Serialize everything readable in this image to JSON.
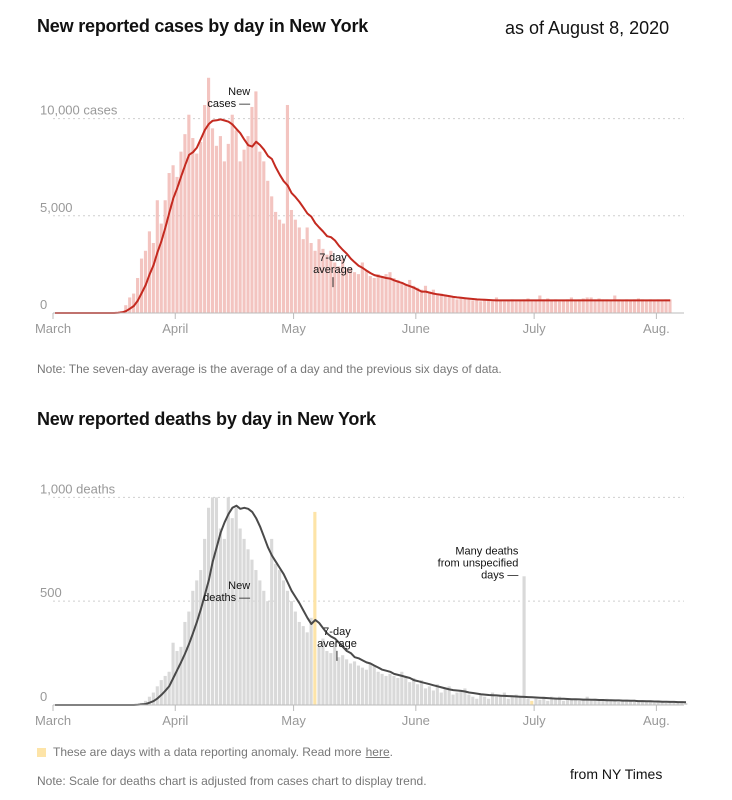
{
  "header": {
    "as_of": "as of August 8, 2020"
  },
  "source": "from NY Times",
  "cases_note": "Note: The seven-day average is the average of a day and the previous six days of data.",
  "legend": {
    "text": "These are days with a data reporting anomaly. Read more",
    "link": "here",
    "end": ".",
    "color": "#fde4a8"
  },
  "deaths_note": "Note: Scale for deaths chart is adjusted from cases chart to display trend.",
  "colors": {
    "cases_bar": "#f3c4c0",
    "cases_line": "#c42a20",
    "deaths_bar": "#d9d9d9",
    "deaths_line": "#4a4a4a",
    "anomaly": "#fde4a8"
  },
  "chart_data": [
    {
      "type": "bar",
      "title": "New reported cases by day in New York",
      "xlabel": "",
      "ylabel": "",
      "ylim": [
        0,
        12500
      ],
      "y_ticks": [
        {
          "value": 0,
          "label": "0"
        },
        {
          "value": 5000,
          "label": "5,000"
        },
        {
          "value": 10000,
          "label": "10,000 cases"
        }
      ],
      "x_ticks": [
        {
          "day": 0,
          "label": "March"
        },
        {
          "day": 31,
          "label": "April"
        },
        {
          "day": 61,
          "label": "May"
        },
        {
          "day": 92,
          "label": "June"
        },
        {
          "day": 122,
          "label": "July"
        },
        {
          "day": 153,
          "label": "Aug."
        }
      ],
      "x_range": [
        0,
        160
      ],
      "annotations": [
        {
          "day": 50,
          "value": 10600,
          "lines": [
            "New",
            "cases —"
          ],
          "align": "end"
        },
        {
          "day": 71,
          "value": 2050,
          "lines": [
            "7-day",
            "average"
          ],
          "align": "middle"
        }
      ],
      "anomaly_days": [],
      "series": [
        {
          "name": "New cases",
          "kind": "bar",
          "values": [
            0,
            0,
            0,
            0,
            0,
            0,
            0,
            0,
            0,
            0,
            0,
            0,
            0,
            0,
            0,
            0,
            20,
            100,
            400,
            800,
            1000,
            1800,
            2800,
            3200,
            4200,
            3600,
            5800,
            4600,
            5800,
            7200,
            7600,
            7000,
            8300,
            9200,
            10200,
            9000,
            8200,
            8800,
            10700,
            12100,
            9500,
            8600,
            9100,
            7800,
            8700,
            10200,
            9400,
            7800,
            8400,
            9100,
            10600,
            11400,
            8300,
            7800,
            6800,
            6000,
            5200,
            4800,
            4600,
            10700,
            5300,
            4800,
            4400,
            3800,
            4400,
            3600,
            3200,
            3800,
            3300,
            3000,
            3200,
            2600,
            2400,
            2800,
            2300,
            2300,
            2100,
            2000,
            2600,
            2200,
            1900,
            1800,
            2000,
            1900,
            2000,
            2100,
            1800,
            1700,
            1600,
            1500,
            1700,
            1400,
            1300,
            1200,
            1400,
            1100,
            1200,
            1000,
            1000,
            950,
            900,
            850,
            700,
            800,
            750,
            700,
            650,
            700,
            600,
            650,
            700,
            600,
            800,
            650,
            600,
            650,
            700,
            600,
            650,
            700,
            750,
            600,
            650,
            900,
            700,
            750,
            650,
            700,
            600,
            650,
            700,
            800,
            650,
            700,
            750,
            800,
            800,
            700,
            750,
            700,
            700,
            650,
            900,
            700,
            650,
            700,
            650,
            700,
            750,
            700,
            650,
            700,
            650,
            700,
            650,
            700,
            700
          ]
        },
        {
          "name": "7-day average",
          "kind": "line",
          "values": [
            0,
            0,
            0,
            0,
            0,
            0,
            0,
            0,
            0,
            0,
            0,
            0,
            0,
            0,
            0,
            0,
            10,
            30,
            100,
            220,
            360,
            640,
            1030,
            1440,
            1990,
            2470,
            3130,
            3710,
            4400,
            5160,
            5900,
            6420,
            7030,
            7600,
            8140,
            8270,
            8510,
            8960,
            9410,
            9720,
            9890,
            9910,
            9960,
            9900,
            9840,
            9700,
            9470,
            9250,
            8920,
            8630,
            8560,
            8810,
            8640,
            8400,
            8080,
            7920,
            7490,
            7110,
            6780,
            6560,
            6170,
            5960,
            5710,
            5420,
            5120,
            4960,
            4620,
            4400,
            4190,
            3950,
            3900,
            3730,
            3460,
            3240,
            3050,
            2800,
            2610,
            2430,
            2320,
            2180,
            2050,
            1950,
            1900,
            1850,
            1800,
            1770,
            1680,
            1610,
            1550,
            1450,
            1380,
            1300,
            1200,
            1100,
            1100,
            1050,
            1000,
            960,
            930,
            900,
            870,
            830,
            800,
            780,
            760,
            740,
            720,
            700,
            690,
            680,
            670,
            660,
            650,
            650,
            650,
            650,
            650,
            650,
            650,
            650,
            650,
            650,
            650,
            650,
            650,
            650,
            650,
            650,
            650,
            650,
            650,
            650,
            650,
            650,
            650,
            650,
            650,
            650,
            650,
            650,
            650,
            650,
            650,
            650,
            650,
            650,
            650,
            650,
            650,
            650,
            650,
            650,
            650,
            650,
            650,
            650,
            650
          ]
        }
      ]
    },
    {
      "type": "bar",
      "title": "New reported deaths by day in New York",
      "xlabel": "",
      "ylabel": "",
      "ylim": [
        0,
        1180
      ],
      "y_ticks": [
        {
          "value": 0,
          "label": "0"
        },
        {
          "value": 500,
          "label": "500"
        },
        {
          "value": 1000,
          "label": "1,000 deaths"
        }
      ],
      "x_ticks": [
        {
          "day": 0,
          "label": "March"
        },
        {
          "day": 31,
          "label": "April"
        },
        {
          "day": 61,
          "label": "May"
        },
        {
          "day": 92,
          "label": "June"
        },
        {
          "day": 122,
          "label": "July"
        },
        {
          "day": 153,
          "label": "Aug."
        }
      ],
      "x_range": [
        0,
        160
      ],
      "annotations": [
        {
          "day": 50,
          "value": 500,
          "lines": [
            "New",
            "deaths —"
          ],
          "align": "end"
        },
        {
          "day": 72,
          "value": 280,
          "lines": [
            "7-day",
            "average"
          ],
          "align": "middle"
        },
        {
          "day": 118,
          "value": 610,
          "lines": [
            "Many deaths",
            "from unspecified",
            "days —"
          ],
          "align": "end"
        }
      ],
      "anomaly_days": [
        66,
        121
      ],
      "series": [
        {
          "name": "New deaths",
          "kind": "bar",
          "values": [
            0,
            0,
            0,
            0,
            0,
            0,
            0,
            0,
            0,
            0,
            0,
            0,
            0,
            0,
            0,
            0,
            0,
            0,
            0,
            0,
            5,
            5,
            10,
            20,
            40,
            60,
            90,
            120,
            140,
            160,
            300,
            260,
            280,
            400,
            450,
            550,
            600,
            650,
            800,
            950,
            1000,
            1000,
            850,
            800,
            1000,
            900,
            950,
            850,
            800,
            750,
            700,
            650,
            600,
            550,
            500,
            800,
            680,
            650,
            600,
            550,
            500,
            450,
            400,
            380,
            350,
            420,
            930,
            280,
            320,
            260,
            250,
            300,
            230,
            240,
            220,
            200,
            210,
            190,
            180,
            170,
            200,
            190,
            160,
            150,
            140,
            150,
            140,
            130,
            160,
            140,
            110,
            130,
            100,
            120,
            80,
            90,
            70,
            100,
            60,
            80,
            90,
            50,
            60,
            70,
            80,
            50,
            40,
            30,
            50,
            40,
            30,
            60,
            40,
            50,
            60,
            30,
            45,
            50,
            40,
            620,
            30,
            20,
            30,
            25,
            40,
            20,
            40,
            30,
            40,
            20,
            30,
            25,
            30,
            20,
            30,
            40,
            20,
            30,
            25,
            20,
            30,
            25,
            20,
            15,
            20,
            25,
            20,
            15,
            20,
            15,
            20,
            15,
            10,
            20,
            15,
            10,
            15,
            10,
            10,
            10,
            10
          ]
        },
        {
          "name": "7-day average",
          "kind": "line",
          "values": [
            0,
            0,
            0,
            0,
            0,
            0,
            0,
            0,
            0,
            0,
            0,
            0,
            0,
            0,
            0,
            0,
            0,
            0,
            0,
            0,
            0,
            1,
            3,
            5,
            11,
            19,
            32,
            49,
            69,
            91,
            130,
            168,
            207,
            248,
            295,
            346,
            400,
            462,
            530,
            600,
            690,
            760,
            830,
            880,
            920,
            950,
            960,
            945,
            950,
            945,
            930,
            900,
            860,
            810,
            760,
            720,
            690,
            660,
            630,
            590,
            550,
            520,
            490,
            455,
            420,
            390,
            410,
            395,
            370,
            345,
            330,
            320,
            300,
            280,
            260,
            250,
            230,
            225,
            215,
            205,
            200,
            190,
            180,
            170,
            165,
            160,
            150,
            145,
            140,
            135,
            130,
            120,
            115,
            110,
            105,
            100,
            95,
            90,
            85,
            80,
            75,
            72,
            70,
            68,
            65,
            60,
            58,
            55,
            52,
            50,
            48,
            47,
            46,
            45,
            44,
            43,
            42,
            41,
            40,
            39,
            38,
            37,
            36,
            35,
            34,
            33,
            32,
            31,
            30,
            30,
            29,
            28,
            28,
            27,
            26,
            26,
            25,
            25,
            24,
            24,
            23,
            23,
            22,
            22,
            21,
            21,
            20,
            20,
            19,
            19,
            18,
            18,
            17,
            17,
            16,
            16,
            15,
            15,
            14,
            14,
            13
          ]
        }
      ]
    }
  ]
}
